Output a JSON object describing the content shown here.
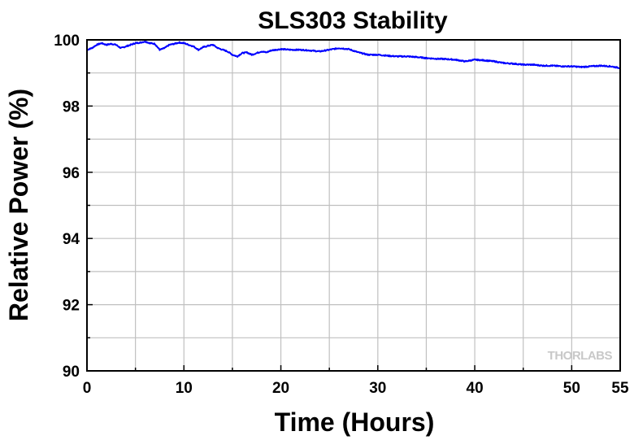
{
  "chart_data": {
    "type": "line",
    "title": "SLS303 Stability",
    "xlabel": "Time (Hours)",
    "ylabel": "Relative Power (%)",
    "xlim": [
      0,
      55
    ],
    "ylim": [
      90,
      100
    ],
    "xticks": [
      0,
      10,
      20,
      30,
      40,
      50,
      55
    ],
    "xtick_labels": [
      "0",
      "10",
      "20",
      "30",
      "40",
      "50",
      "55"
    ],
    "yticks": [
      90,
      92,
      94,
      96,
      98,
      100
    ],
    "ytick_labels": [
      "90",
      "92",
      "94",
      "96",
      "98",
      "100"
    ],
    "grid": true,
    "watermark": "THORLABS",
    "series": [
      {
        "color": "#0000ff",
        "x": [
          0,
          0.5,
          1,
          1.5,
          2,
          2.5,
          3,
          3.5,
          4,
          4.5,
          5,
          5.5,
          6,
          6.5,
          7,
          7.5,
          8,
          8.5,
          9,
          9.5,
          10,
          10.5,
          11,
          11.5,
          12,
          12.5,
          13,
          13.5,
          14,
          14.5,
          15,
          15.5,
          16,
          16.5,
          17,
          17.5,
          18,
          18.5,
          19,
          19.5,
          20,
          21,
          22,
          23,
          24,
          25,
          26,
          27,
          28,
          29,
          30,
          31,
          32,
          33,
          34,
          35,
          36,
          37,
          38,
          39,
          40,
          41,
          42,
          43,
          44,
          45,
          46,
          47,
          48,
          49,
          50,
          51,
          52,
          53,
          54,
          55
        ],
        "y": [
          99.7,
          99.75,
          99.85,
          99.9,
          99.85,
          99.88,
          99.85,
          99.75,
          99.8,
          99.85,
          99.9,
          99.92,
          99.95,
          99.9,
          99.88,
          99.7,
          99.75,
          99.85,
          99.88,
          99.92,
          99.9,
          99.85,
          99.8,
          99.7,
          99.78,
          99.82,
          99.85,
          99.75,
          99.7,
          99.65,
          99.55,
          99.5,
          99.6,
          99.62,
          99.55,
          99.6,
          99.65,
          99.62,
          99.68,
          99.7,
          99.72,
          99.7,
          99.7,
          99.68,
          99.65,
          99.7,
          99.75,
          99.72,
          99.62,
          99.55,
          99.55,
          99.52,
          99.5,
          99.5,
          99.48,
          99.45,
          99.43,
          99.42,
          99.4,
          99.35,
          99.4,
          99.38,
          99.35,
          99.3,
          99.28,
          99.25,
          99.25,
          99.22,
          99.22,
          99.2,
          99.2,
          99.18,
          99.2,
          99.22,
          99.2,
          99.15
        ]
      }
    ]
  }
}
